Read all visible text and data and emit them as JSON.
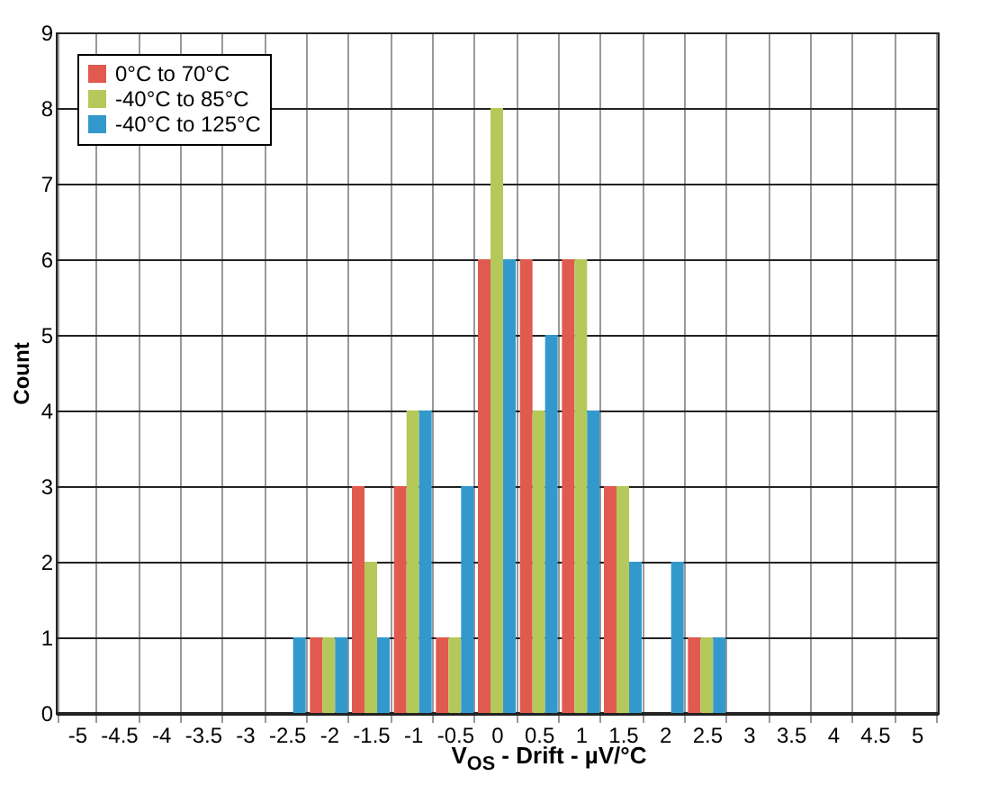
{
  "chart_data": {
    "type": "bar",
    "xlabel": "V$_{OS}$ - Drift - µV/°C",
    "ylabel": "Count",
    "categories": [
      "-5",
      "-4.5",
      "-4",
      "-3.5",
      "-3",
      "-2.5",
      "-2",
      "-1.5",
      "-1",
      "-0.5",
      "0",
      "0.5",
      "1",
      "1.5",
      "2",
      "2.5",
      "3",
      "3.5",
      "4",
      "4.5",
      "5"
    ],
    "series": [
      {
        "name": "0°C to 70°C",
        "color": "#e05a50",
        "values": [
          0,
          0,
          0,
          0,
          0,
          0,
          1,
          3,
          3,
          1,
          6,
          6,
          6,
          3,
          0,
          1,
          0,
          0,
          0,
          0,
          0
        ]
      },
      {
        "name": "-40°C to 85°C",
        "color": "#b5c95a",
        "values": [
          0,
          0,
          0,
          0,
          0,
          0,
          1,
          2,
          4,
          1,
          8,
          4,
          6,
          3,
          0,
          1,
          0,
          0,
          0,
          0,
          0
        ]
      },
      {
        "name": "-40°C to 125°C",
        "color": "#3399cc",
        "values": [
          0,
          0,
          0,
          0,
          0,
          1,
          1,
          1,
          4,
          3,
          6,
          5,
          4,
          2,
          2,
          1,
          0,
          0,
          0,
          0,
          0
        ]
      }
    ],
    "ylim": [
      0,
      9
    ],
    "yticks": [
      0,
      1,
      2,
      3,
      4,
      5,
      6,
      7,
      8,
      9
    ],
    "grid": true,
    "legend": "top left"
  }
}
